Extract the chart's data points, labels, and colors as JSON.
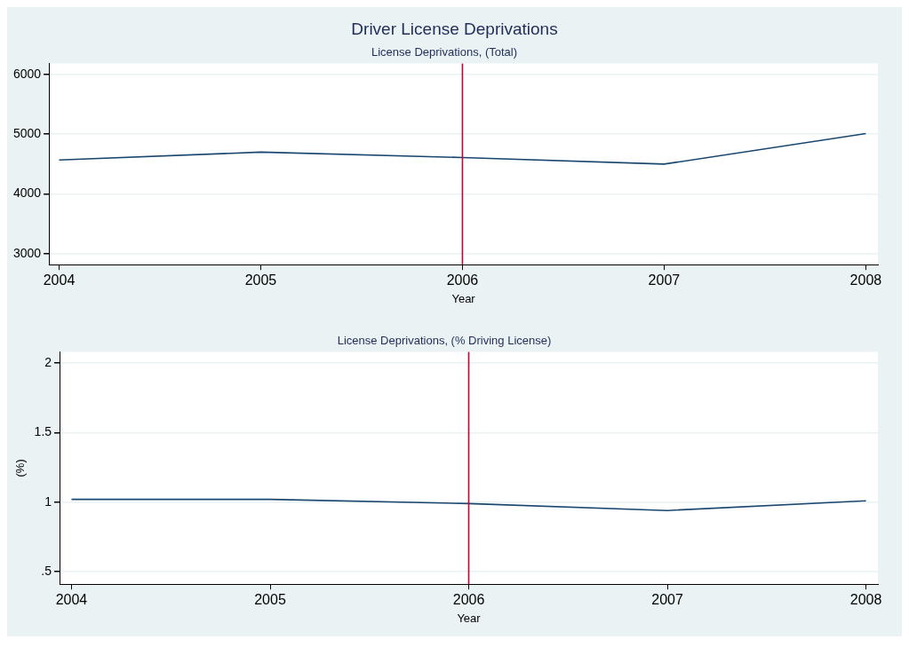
{
  "chart_data": [
    {
      "type": "line",
      "title": "Driver License Deprivations",
      "subtitle": "License Deprivations, (Total)",
      "xlabel": "Year",
      "x": [
        2004,
        2005,
        2006,
        2007,
        2008
      ],
      "series": [
        {
          "color": "#1a476f",
          "values": [
            4570,
            4700,
            4610,
            4500,
            5010
          ]
        }
      ],
      "xlim": [
        2003.95,
        2008.06
      ],
      "xticks": [
        2004,
        2005,
        2006,
        2007,
        2008
      ],
      "ylim": [
        2820,
        6180
      ],
      "yticks": [
        3000,
        4000,
        5000,
        6000
      ],
      "ref_lines": [
        {
          "axis": "x",
          "value": 2006,
          "color": "#c10534"
        }
      ],
      "grid": "y",
      "legend": false,
      "marker": "none",
      "line_style": "solid"
    },
    {
      "type": "line",
      "title": "License Deprivations, (% Driving License)",
      "xlabel": "Year",
      "ylabel": "(%)",
      "x": [
        2004,
        2005,
        2006,
        2007,
        2008
      ],
      "series": [
        {
          "color": "#1a476f",
          "values": [
            1.02,
            1.02,
            0.99,
            0.94,
            1.01
          ]
        }
      ],
      "xlim": [
        2003.94,
        2008.06
      ],
      "xticks": [
        2004,
        2005,
        2006,
        2007,
        2008
      ],
      "ylim": [
        0.41,
        2.08
      ],
      "yticks": [
        {
          "value": 0.5,
          "label": ".5"
        },
        1,
        1.5,
        2
      ],
      "ref_lines": [
        {
          "axis": "x",
          "value": 2006,
          "color": "#c10534"
        }
      ],
      "grid": "y",
      "legend": false,
      "marker": "none",
      "line_style": "solid"
    }
  ]
}
